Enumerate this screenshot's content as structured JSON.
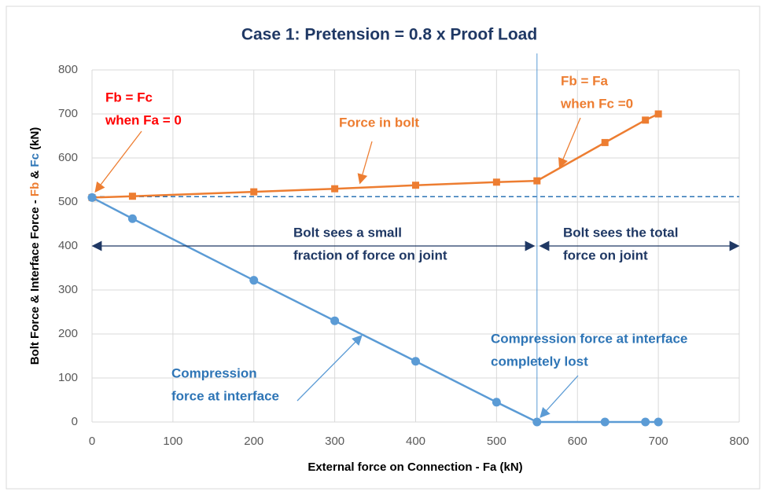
{
  "chart_data": {
    "type": "line",
    "title": "Case 1: Pretension = 0.8 x Proof Load",
    "x_label": "External force on Connection - Fa (kN)",
    "y_label_parts": [
      "Bolt Force & Interface Force - ",
      "Fb",
      " & ",
      "Fc",
      " (kN)"
    ],
    "y_label_colors": [
      "#000000",
      "#ED7D31",
      "#000000",
      "#2E75B6",
      "#000000"
    ],
    "series": [
      {
        "name": "Force in bolt",
        "color": "#ED7D31",
        "marker": "square",
        "x": [
          0,
          50,
          200,
          300,
          400,
          500,
          550,
          634,
          684,
          700
        ],
        "values": [
          510,
          513,
          523,
          530,
          538,
          545,
          548,
          635,
          686,
          700
        ]
      },
      {
        "name": "Compression force at interface",
        "color": "#5B9BD5",
        "marker": "circle",
        "x": [
          0,
          50,
          200,
          300,
          400,
          500,
          550,
          634,
          684,
          700
        ],
        "values": [
          510,
          462,
          322,
          230,
          138,
          45,
          0,
          0,
          0,
          0
        ]
      }
    ],
    "hline": 512,
    "vline": 550,
    "xlim": [
      0,
      800
    ],
    "xticks": [
      0,
      100,
      200,
      300,
      400,
      500,
      600,
      700,
      800
    ],
    "ylim": [
      0,
      800
    ],
    "yticks": [
      0,
      100,
      200,
      300,
      400,
      500,
      600,
      700,
      800
    ],
    "grid": true,
    "annotations": [
      {
        "lines": [
          "Fb = Fc",
          "when Fa = 0"
        ],
        "color": "#FF0000"
      },
      {
        "lines": [
          "Force in bolt"
        ],
        "color": "#ED7D31"
      },
      {
        "lines": [
          "Fb = Fa",
          "when Fc =0"
        ],
        "color": "#ED7D31"
      },
      {
        "lines": [
          "Bolt sees a small",
          "fraction of force on joint"
        ],
        "color": "#1F3864"
      },
      {
        "lines": [
          "Bolt sees the total",
          "force on joint"
        ],
        "color": "#1F3864"
      },
      {
        "lines": [
          "Compression force at interface",
          "completely lost"
        ],
        "color": "#2E75B6"
      },
      {
        "lines": [
          "Compression",
          "force at interface"
        ],
        "color": "#2E75B6"
      }
    ]
  }
}
